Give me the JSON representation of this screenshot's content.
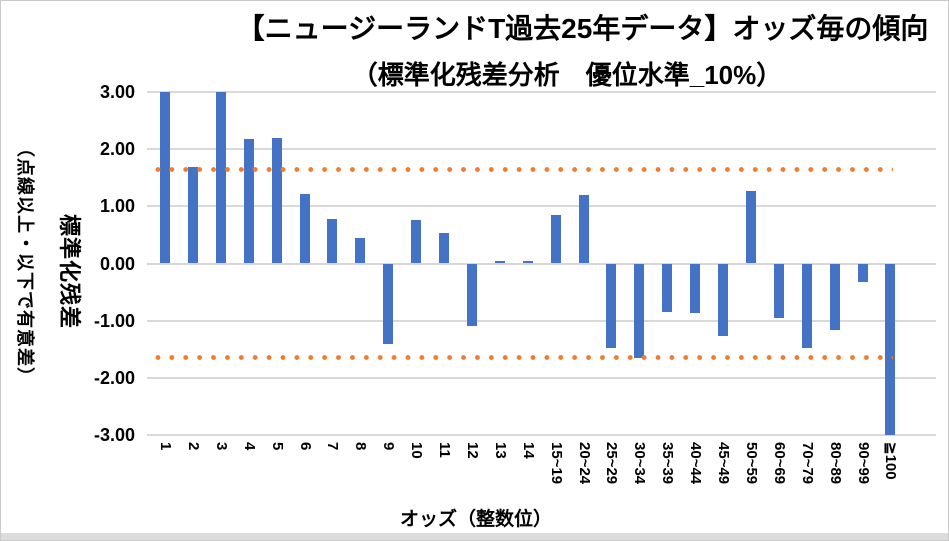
{
  "page": {
    "background": "#FFFFFF",
    "border_color": "#C9C9C9",
    "bottom_strip_color": "#DCDCDC"
  },
  "chart_data": {
    "type": "bar",
    "title": "【ニュージーランドT過去25年データ】オッズ毎の傾向",
    "subtitle": "（標準化残差分析　優位水準_10%）",
    "xlabel": "オッズ（整数位）",
    "ylabel": "標準化残差",
    "ylabel_sub": "（点線以上・以下で有意差）",
    "categories": [
      "1",
      "2",
      "3",
      "4",
      "5",
      "6",
      "7",
      "8",
      "9",
      "10",
      "11",
      "12",
      "13",
      "14",
      "15~19",
      "20~24",
      "25~29",
      "30~34",
      "35~39",
      "40~44",
      "45~49",
      "50~59",
      "60~69",
      "70~79",
      "80~89",
      "90~99",
      "≧100"
    ],
    "values": [
      3.0,
      1.69,
      3.0,
      2.18,
      2.2,
      1.21,
      0.77,
      0.44,
      -1.4,
      0.76,
      0.53,
      -1.1,
      0.04,
      0.04,
      0.85,
      1.19,
      -1.48,
      -1.66,
      -0.85,
      -0.86,
      -1.26,
      1.27,
      -0.96,
      -1.47,
      -1.17,
      -0.32,
      -3.0
    ],
    "ylim": [
      -3,
      3
    ],
    "yticks": [
      {
        "value": 3,
        "label": "3.00"
      },
      {
        "value": 2,
        "label": "2.00"
      },
      {
        "value": 1,
        "label": "1.00"
      },
      {
        "value": 0,
        "label": "0.00"
      },
      {
        "value": -1,
        "label": "-1.00"
      },
      {
        "value": -2,
        "label": "-2.00"
      },
      {
        "value": -3,
        "label": "-3.00"
      }
    ],
    "reference_lines": [
      {
        "name": "upper-significance",
        "value": 1.645,
        "style": "dotted"
      },
      {
        "name": "lower-significance",
        "value": -1.645,
        "style": "dotted"
      }
    ],
    "grid": true,
    "legend": "none",
    "bar_color": "#4472C4",
    "reference_color": "#ED7D31",
    "gridline_color": "#D9D9D9"
  }
}
